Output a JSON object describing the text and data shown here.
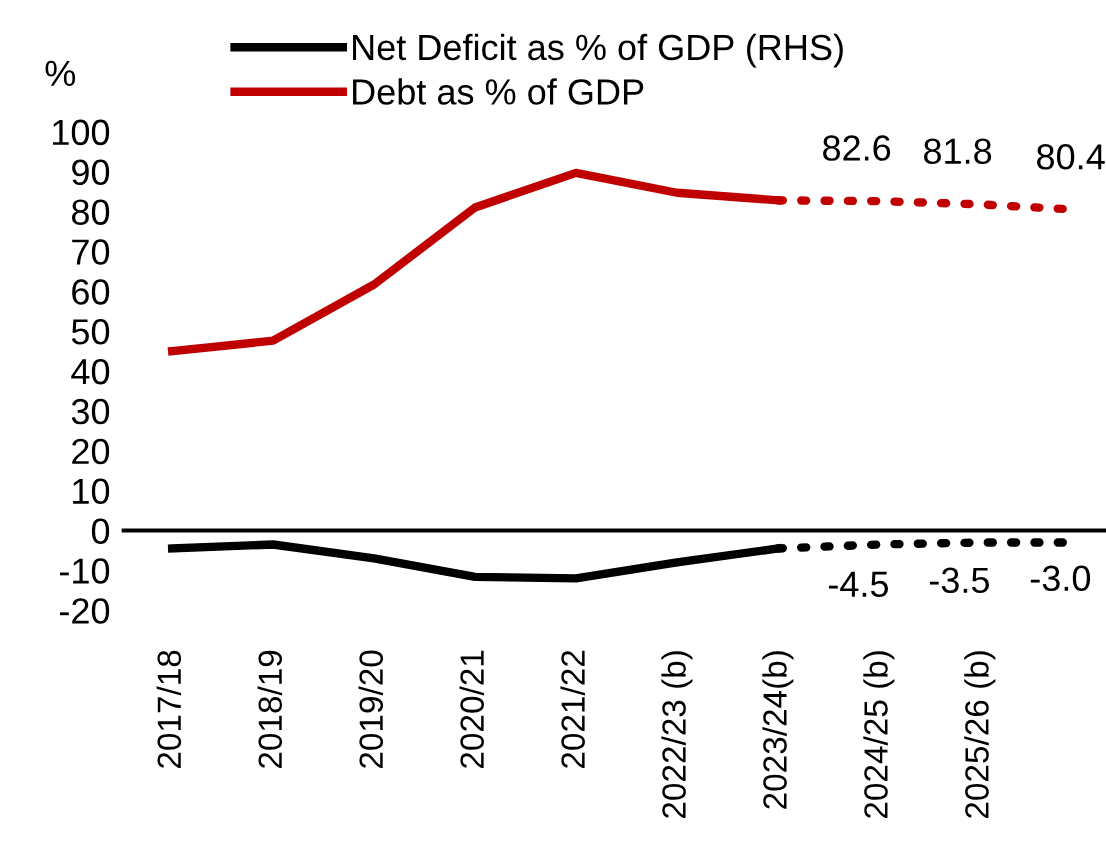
{
  "chart_data": {
    "type": "line",
    "ylabel": "%",
    "categories": [
      "2017/18",
      "2018/19",
      "2019/20",
      "2020/21",
      "2021/22",
      "2022/23 (b)",
      "2023/24(b)",
      "2024/25 (b)",
      "2025/26 (b)",
      null
    ],
    "series": [
      {
        "name": "Net Deficit as % of GDP (RHS)",
        "color": "#000000",
        "line_style": "solid",
        "values": [
          -4.5,
          -3.5,
          -7,
          -11.6,
          -12,
          -8,
          -4.5,
          null,
          null,
          null
        ]
      },
      {
        "name": "Debt as % of GDP",
        "color": "#c00000",
        "line_style": "solid",
        "values": [
          45,
          47.6,
          61.7,
          81,
          89.7,
          84.7,
          82.8,
          null,
          null,
          null
        ]
      },
      {
        "color": "#000000",
        "line_style": "dotted",
        "values": [
          null,
          null,
          null,
          null,
          null,
          null,
          -4.5,
          -3.5,
          -3.0,
          -3.0
        ],
        "value_labels": [
          null,
          null,
          null,
          null,
          null,
          null,
          "-4.5",
          "-3.5",
          "-3.0",
          null
        ]
      },
      {
        "color": "#c00000",
        "line_style": "dotted",
        "values": [
          null,
          null,
          null,
          null,
          null,
          null,
          82.8,
          82.6,
          81.8,
          80.4
        ],
        "value_labels": [
          null,
          null,
          null,
          null,
          null,
          null,
          null,
          "82.6",
          "81.8",
          "80.4"
        ]
      }
    ],
    "ylim": [
      -20,
      100
    ],
    "yticks": [
      -20,
      -10,
      0,
      10,
      20,
      30,
      40,
      50,
      60,
      70,
      80,
      90,
      100
    ],
    "ref_lines": [
      {
        "axis": "y",
        "value": 0,
        "color": "#000000"
      }
    ],
    "legend": "top",
    "grid": false,
    "marker": "none"
  }
}
